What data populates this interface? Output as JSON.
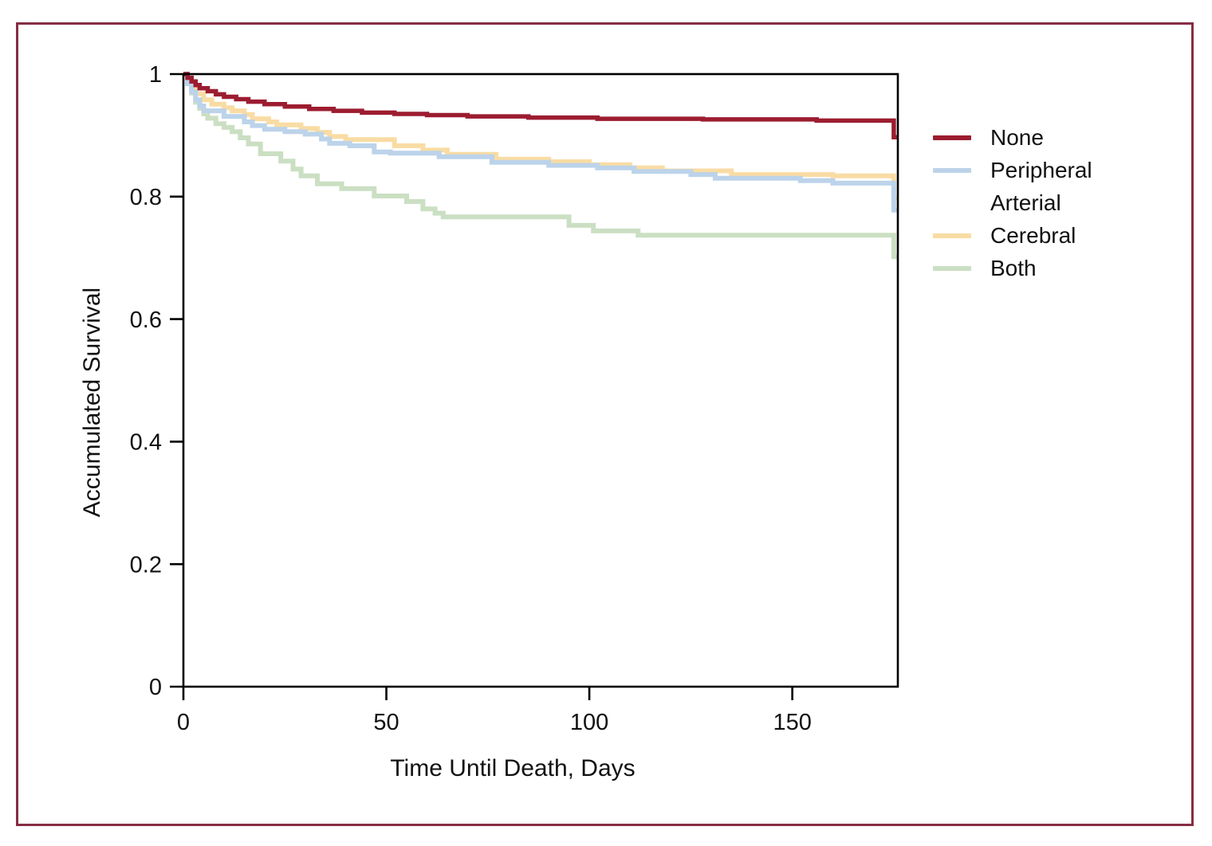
{
  "figure": {
    "background": "#ffffff",
    "border_color": "#852D45",
    "axis_color": "#000000",
    "text_color": "#111111"
  },
  "chart_data": {
    "type": "line",
    "subtype": "kaplan-meier-step",
    "title": "",
    "xlabel": "Time Until Death, Days",
    "ylabel": "Accumulated Survival",
    "xlim": [
      0,
      176
    ],
    "ylim": [
      0,
      1
    ],
    "xticks": [
      0,
      50,
      100,
      150
    ],
    "xtick_labels": [
      "0",
      "50",
      "100",
      "150"
    ],
    "yticks": [
      0,
      0.2,
      0.4,
      0.6,
      0.8,
      1
    ],
    "ytick_labels": [
      "0",
      "0.2",
      "0.4",
      "0.6",
      "0.8",
      "1"
    ],
    "grid": false,
    "legend_position": "right",
    "series": [
      {
        "name": "None",
        "color": "#9C1C30",
        "line_width": 5.5,
        "points": [
          [
            0,
            1.0
          ],
          [
            1,
            0.994
          ],
          [
            2,
            0.988
          ],
          [
            3,
            0.982
          ],
          [
            4,
            0.977
          ],
          [
            6,
            0.972
          ],
          [
            8,
            0.967
          ],
          [
            10,
            0.963
          ],
          [
            13,
            0.959
          ],
          [
            16,
            0.955
          ],
          [
            20,
            0.951
          ],
          [
            25,
            0.947
          ],
          [
            31,
            0.943
          ],
          [
            37,
            0.94
          ],
          [
            44,
            0.937
          ],
          [
            52,
            0.935
          ],
          [
            60,
            0.933
          ],
          [
            70,
            0.931
          ],
          [
            85,
            0.929
          ],
          [
            102,
            0.927
          ],
          [
            128,
            0.926
          ],
          [
            156,
            0.924
          ],
          [
            175,
            0.897
          ]
        ]
      },
      {
        "name": "Peripheral Arterial",
        "color": "#BCD3EA",
        "line_width": 6,
        "points": [
          [
            0,
            1.0
          ],
          [
            1,
            0.985
          ],
          [
            2,
            0.971
          ],
          [
            3,
            0.958
          ],
          [
            4,
            0.948
          ],
          [
            5,
            0.94
          ],
          [
            10,
            0.931
          ],
          [
            15,
            0.922
          ],
          [
            17,
            0.916
          ],
          [
            20,
            0.91
          ],
          [
            25,
            0.906
          ],
          [
            30,
            0.902
          ],
          [
            34,
            0.894
          ],
          [
            36,
            0.887
          ],
          [
            41,
            0.883
          ],
          [
            47,
            0.873
          ],
          [
            51,
            0.871
          ],
          [
            63,
            0.865
          ],
          [
            76,
            0.856
          ],
          [
            90,
            0.851
          ],
          [
            102,
            0.847
          ],
          [
            111,
            0.841
          ],
          [
            125,
            0.836
          ],
          [
            131,
            0.83
          ],
          [
            152,
            0.826
          ],
          [
            160,
            0.822
          ],
          [
            175,
            0.778
          ]
        ]
      },
      {
        "name": "Cerebral",
        "color": "#F9DCA4",
        "line_width": 6,
        "points": [
          [
            0,
            1.0
          ],
          [
            1,
            0.991
          ],
          [
            2,
            0.979
          ],
          [
            3,
            0.968
          ],
          [
            5,
            0.958
          ],
          [
            7,
            0.951
          ],
          [
            10,
            0.945
          ],
          [
            12,
            0.94
          ],
          [
            15,
            0.934
          ],
          [
            17,
            0.927
          ],
          [
            21,
            0.922
          ],
          [
            23,
            0.917
          ],
          [
            29,
            0.911
          ],
          [
            33,
            0.905
          ],
          [
            36,
            0.898
          ],
          [
            40,
            0.893
          ],
          [
            52,
            0.883
          ],
          [
            59,
            0.876
          ],
          [
            65,
            0.869
          ],
          [
            77,
            0.861
          ],
          [
            90,
            0.857
          ],
          [
            100,
            0.852
          ],
          [
            110,
            0.847
          ],
          [
            118,
            0.842
          ],
          [
            135,
            0.836
          ],
          [
            160,
            0.834
          ],
          [
            175,
            0.798
          ]
        ]
      },
      {
        "name": "Both",
        "color": "#CBDFC3",
        "line_width": 6,
        "points": [
          [
            0,
            1.0
          ],
          [
            1,
            0.984
          ],
          [
            2,
            0.969
          ],
          [
            3,
            0.954
          ],
          [
            4,
            0.944
          ],
          [
            5,
            0.935
          ],
          [
            6,
            0.928
          ],
          [
            8,
            0.919
          ],
          [
            10,
            0.913
          ],
          [
            12,
            0.906
          ],
          [
            14,
            0.896
          ],
          [
            16,
            0.886
          ],
          [
            19,
            0.87
          ],
          [
            24,
            0.858
          ],
          [
            27,
            0.845
          ],
          [
            29,
            0.834
          ],
          [
            33,
            0.821
          ],
          [
            39,
            0.813
          ],
          [
            47,
            0.801
          ],
          [
            55,
            0.792
          ],
          [
            59,
            0.78
          ],
          [
            62,
            0.773
          ],
          [
            64,
            0.767
          ],
          [
            95,
            0.753
          ],
          [
            101,
            0.744
          ],
          [
            112,
            0.737
          ],
          [
            175,
            0.702
          ]
        ]
      }
    ]
  },
  "legend": {
    "items": [
      "None",
      "Peripheral Arterial",
      "Cerebral",
      "Both"
    ]
  }
}
